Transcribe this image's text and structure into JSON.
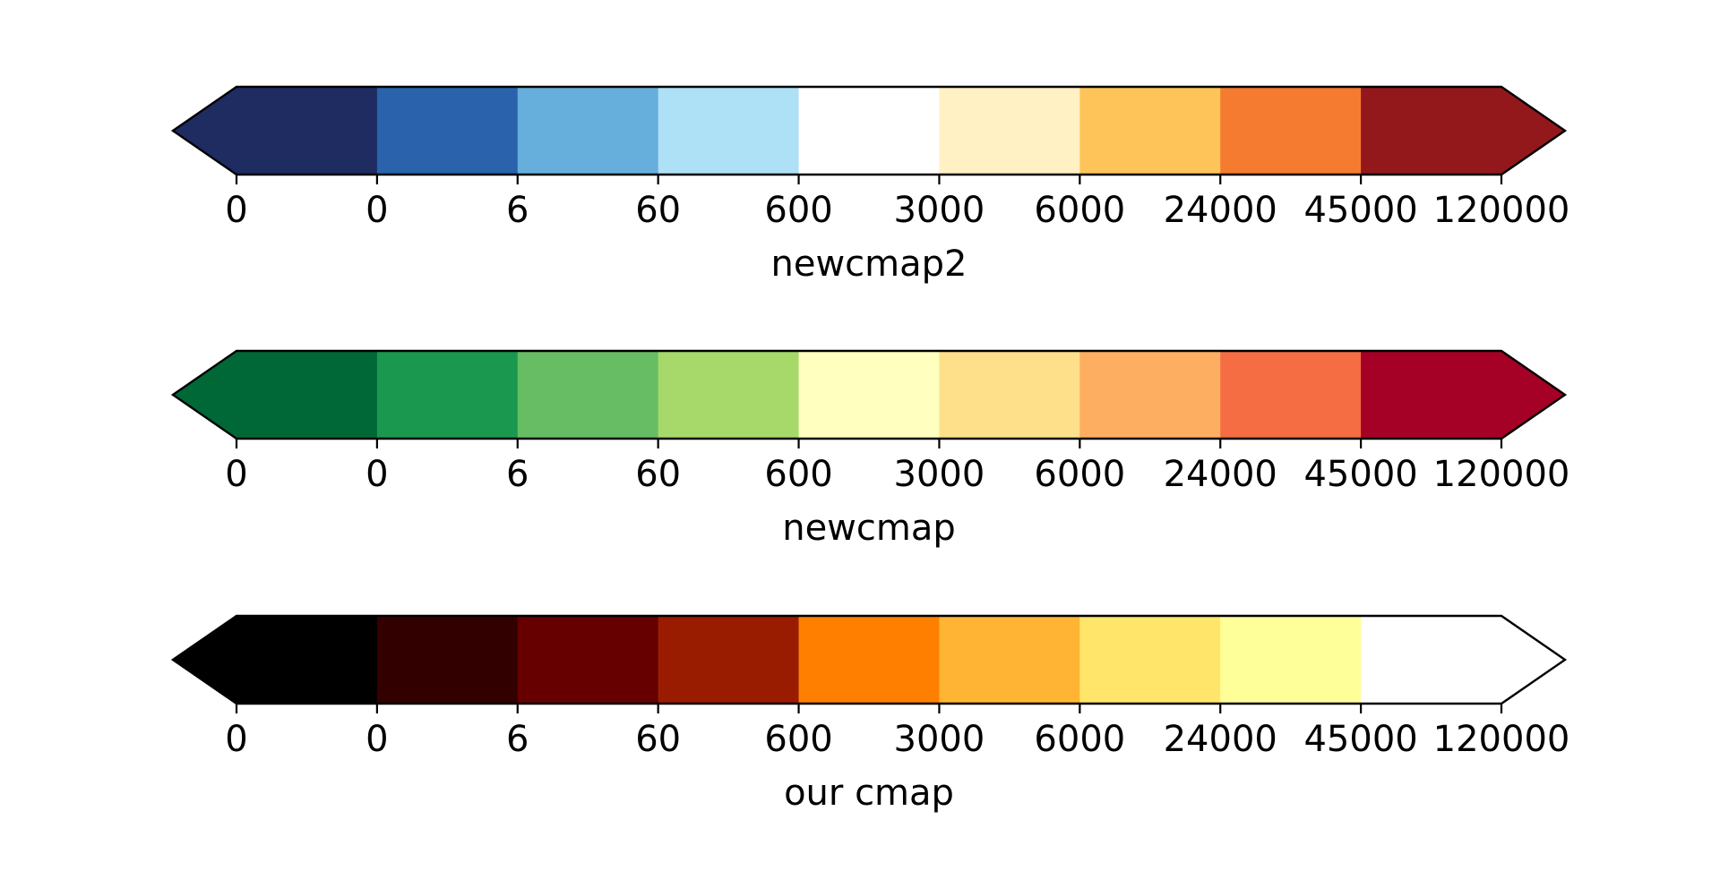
{
  "chart_data": [
    {
      "type": "colorbar",
      "orientation": "horizontal",
      "extend": "both",
      "label": "newcmap2",
      "tick_labels": [
        "0",
        "0",
        "6",
        "60",
        "600",
        "3000",
        "6000",
        "24000",
        "45000",
        "120000"
      ],
      "bins": 9,
      "extend_min_color": "#1e2c62",
      "extend_max_color": "#93181c",
      "colors": [
        "#1e2c62",
        "#2a62ac",
        "#66aedb",
        "#aee0f6",
        "#ffffff",
        "#fff1c3",
        "#fec45a",
        "#f57b30",
        "#93181c"
      ]
    },
    {
      "type": "colorbar",
      "orientation": "horizontal",
      "extend": "both",
      "label": "newcmap",
      "tick_labels": [
        "0",
        "0",
        "6",
        "60",
        "600",
        "3000",
        "6000",
        "24000",
        "45000",
        "120000"
      ],
      "bins": 9,
      "extend_min_color": "#006837",
      "extend_max_color": "#a50026",
      "colors": [
        "#006837",
        "#1a9850",
        "#66bd63",
        "#a6d96a",
        "#ffffbf",
        "#fee08b",
        "#fdae61",
        "#f46d43",
        "#a50026"
      ]
    },
    {
      "type": "colorbar",
      "orientation": "horizontal",
      "extend": "both",
      "label": "our cmap",
      "tick_labels": [
        "0",
        "0",
        "6",
        "60",
        "600",
        "3000",
        "6000",
        "24000",
        "45000",
        "120000"
      ],
      "bins": 9,
      "extend_min_color": "#000000",
      "extend_max_color": "#ffffff",
      "colors": [
        "#000000",
        "#330000",
        "#660000",
        "#9a1c00",
        "#ff8000",
        "#ffb433",
        "#ffe66b",
        "#ffff99",
        "#ffffff"
      ]
    }
  ]
}
